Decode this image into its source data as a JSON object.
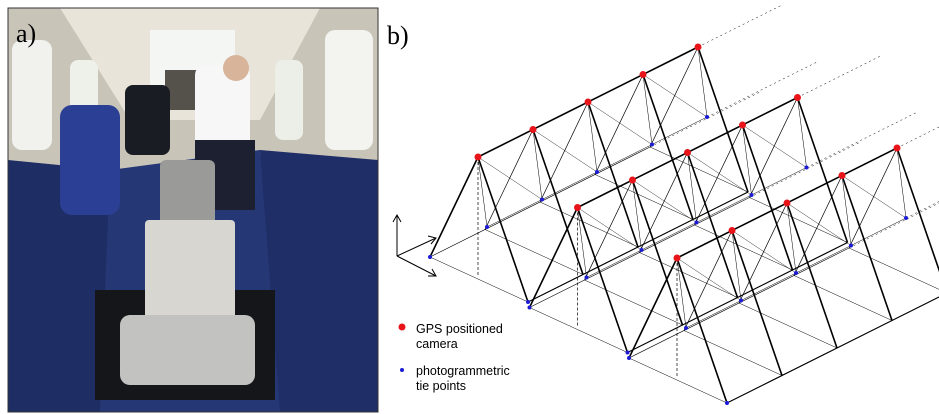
{
  "panel_a": {
    "label": "a)"
  },
  "panel_b": {
    "label": "b)",
    "legend": [
      {
        "lines": [
          "GPS positioned",
          "camera"
        ]
      },
      {
        "lines": [
          "photogrammetric",
          "tie points"
        ]
      }
    ]
  }
}
